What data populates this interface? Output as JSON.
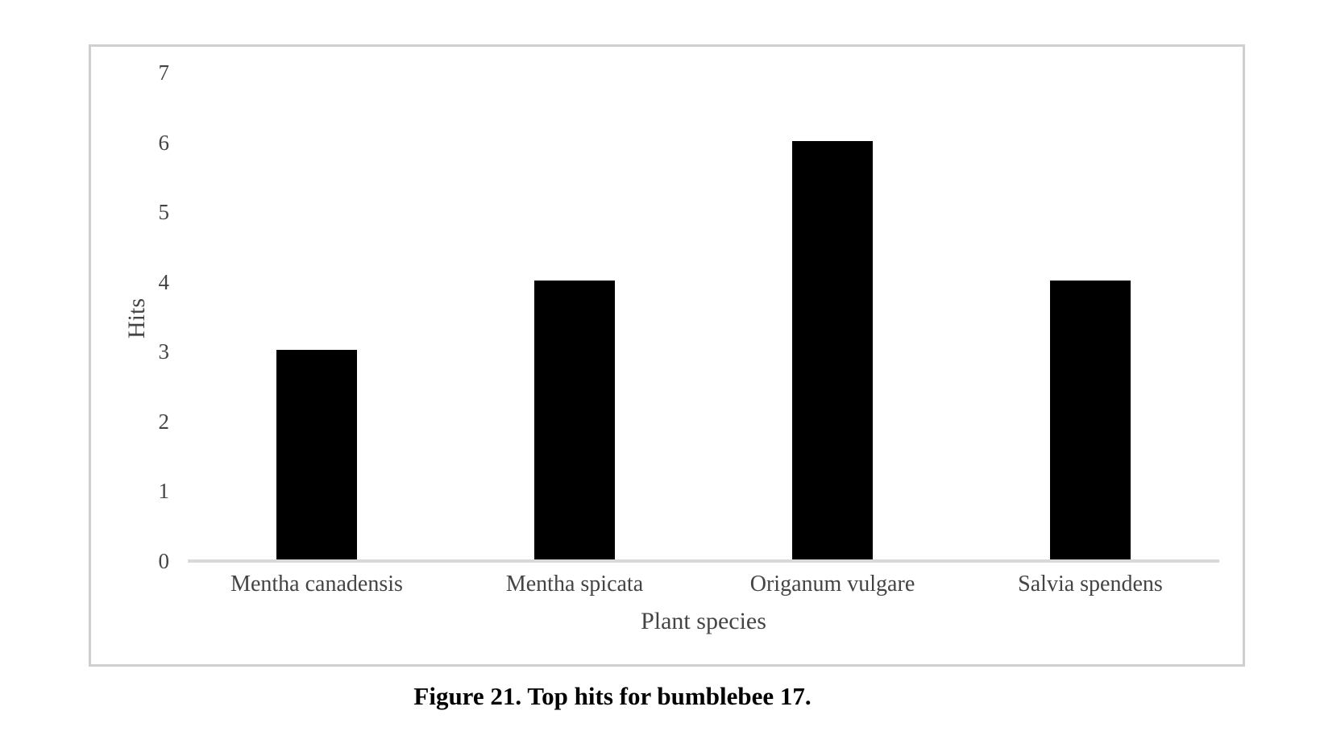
{
  "figure": {
    "caption": "Figure 21. Top hits for bumblebee 17."
  },
  "chart_data": {
    "type": "bar",
    "categories": [
      "Mentha canadensis",
      "Mentha spicata",
      "Origanum vulgare",
      "Salvia spendens"
    ],
    "values": [
      3,
      4,
      6,
      4
    ],
    "title": "",
    "xlabel": "Plant species",
    "ylabel": "Hits",
    "ylim": [
      0,
      7
    ],
    "yticks": [
      0,
      1,
      2,
      3,
      4,
      5,
      6,
      7
    ],
    "grid": false,
    "legend_position": "none",
    "bar_color": "#000000",
    "axis_line_color": "#d9d9d9",
    "frame_border_color": "#cfcfcf",
    "text_color": "#444444",
    "caption_color": "#000000"
  }
}
